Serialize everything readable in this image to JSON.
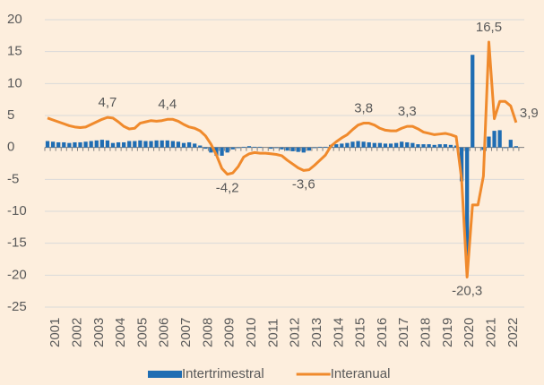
{
  "chart_data": {
    "type": "bar-line",
    "categories": [
      "2001",
      null,
      null,
      null,
      "2002",
      null,
      null,
      null,
      "2003",
      null,
      null,
      null,
      "2004",
      null,
      null,
      null,
      "2005",
      null,
      null,
      null,
      "2006",
      null,
      null,
      null,
      "2007",
      null,
      null,
      null,
      "2008",
      null,
      null,
      null,
      "2009",
      null,
      null,
      null,
      "2010",
      null,
      null,
      null,
      "2011",
      null,
      null,
      null,
      "2012",
      null,
      null,
      null,
      "2013",
      null,
      null,
      null,
      "2014",
      null,
      null,
      null,
      "2015",
      null,
      null,
      null,
      "2016",
      null,
      null,
      null,
      "2017",
      null,
      null,
      null,
      "2018",
      null,
      null,
      null,
      "2019",
      null,
      null,
      null,
      "2020",
      null,
      null,
      null,
      "2021",
      null,
      null,
      null,
      "2022",
      null,
      null,
      null
    ],
    "series": [
      {
        "name": "Intertrimestral",
        "type": "bar",
        "color": "#1f6db3",
        "values": [
          1.0,
          0.9,
          0.8,
          0.8,
          0.7,
          0.8,
          0.8,
          0.9,
          1.0,
          1.1,
          1.2,
          1.1,
          0.7,
          0.8,
          0.8,
          1.0,
          1.0,
          1.1,
          1.0,
          1.0,
          1.1,
          1.1,
          1.1,
          1.0,
          0.9,
          0.7,
          0.8,
          0.6,
          0.3,
          -0.2,
          -0.8,
          -1.3,
          -1.3,
          -0.8,
          -0.3,
          -0.1,
          0.1,
          0.2,
          0.1,
          0.1,
          0.0,
          -0.2,
          -0.1,
          -0.3,
          -0.5,
          -0.6,
          -0.7,
          -0.8,
          -0.5,
          -0.1,
          0.1,
          0.1,
          0.4,
          0.5,
          0.6,
          0.7,
          0.9,
          1.0,
          0.9,
          0.8,
          0.7,
          0.7,
          0.6,
          0.6,
          0.7,
          0.9,
          0.8,
          0.7,
          0.5,
          0.5,
          0.5,
          0.4,
          0.5,
          0.5,
          0.4,
          0.3,
          -5.3,
          -17.8,
          14.5,
          0.0,
          -0.4,
          1.7,
          2.6,
          2.7,
          -0.1,
          1.2,
          0.2,
          null
        ]
      },
      {
        "name": "Interanual",
        "type": "line",
        "color": "#f08a2c",
        "values": [
          4.6,
          4.3,
          4.0,
          3.7,
          3.4,
          3.2,
          3.1,
          3.2,
          3.6,
          4.0,
          4.4,
          4.7,
          4.6,
          4.0,
          3.3,
          2.9,
          3.0,
          3.8,
          4.0,
          4.2,
          4.1,
          4.2,
          4.4,
          4.4,
          4.1,
          3.6,
          3.2,
          3.0,
          2.6,
          1.8,
          0.5,
          -1.2,
          -3.3,
          -4.2,
          -4.0,
          -3.0,
          -1.5,
          -1.0,
          -0.8,
          -0.9,
          -0.9,
          -1.0,
          -1.1,
          -1.3,
          -2.0,
          -2.6,
          -3.2,
          -3.6,
          -3.5,
          -2.8,
          -2.0,
          -1.2,
          0.2,
          0.9,
          1.5,
          2.0,
          2.8,
          3.5,
          3.8,
          3.8,
          3.5,
          3.0,
          2.7,
          2.6,
          2.6,
          3.0,
          3.3,
          3.3,
          2.9,
          2.4,
          2.2,
          2.0,
          2.1,
          2.2,
          2.0,
          1.7,
          -5.0,
          -20.3,
          -9.0,
          -9.0,
          -4.5,
          16.5,
          4.5,
          7.2,
          7.2,
          6.5,
          3.9,
          null
        ],
        "value_labels": [
          null,
          null,
          null,
          null,
          null,
          null,
          null,
          null,
          null,
          null,
          null,
          "4,7",
          null,
          null,
          null,
          null,
          null,
          null,
          null,
          null,
          null,
          null,
          "4,4",
          null,
          null,
          null,
          null,
          null,
          null,
          null,
          null,
          null,
          null,
          "-4,2",
          null,
          null,
          null,
          null,
          null,
          null,
          null,
          null,
          null,
          null,
          null,
          null,
          null,
          "-3,6",
          null,
          null,
          null,
          null,
          null,
          null,
          null,
          null,
          null,
          null,
          "3,8",
          null,
          null,
          null,
          null,
          null,
          null,
          null,
          "3,3",
          null,
          null,
          null,
          null,
          null,
          null,
          null,
          null,
          null,
          null,
          "-20,3",
          null,
          null,
          null,
          "16,5",
          null,
          null,
          null,
          null,
          "3,9",
          null
        ]
      }
    ],
    "ylim": [
      -25,
      20
    ],
    "yticks": [
      -25,
      -20,
      -15,
      -10,
      -5,
      0,
      5,
      10,
      15,
      20
    ],
    "legend": "bottom"
  }
}
